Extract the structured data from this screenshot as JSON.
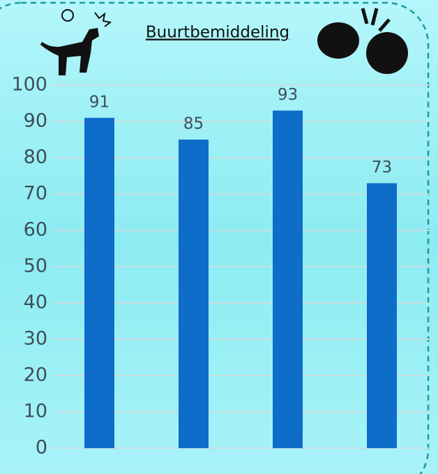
{
  "chart_data": {
    "type": "bar",
    "title": "Buurtbemiddeling",
    "categories": [
      null,
      null,
      null,
      null
    ],
    "values": [
      91,
      85,
      93,
      73
    ],
    "color": "#0e6dc8",
    "ylim": [
      0,
      100
    ],
    "yticks": [
      0,
      10,
      20,
      30,
      40,
      50,
      60,
      70,
      80,
      90,
      100
    ],
    "grid": true
  }
}
